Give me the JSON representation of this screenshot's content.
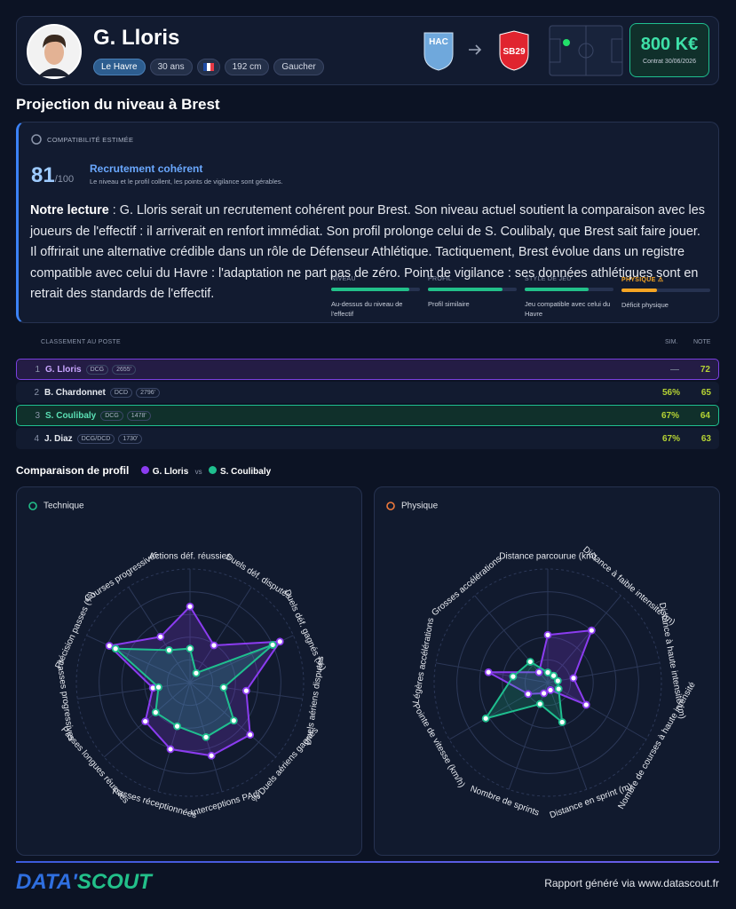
{
  "header": {
    "name": "G. Lloris",
    "tags": [
      "Le Havre",
      "30 ans",
      "192 cm",
      "Gaucher"
    ],
    "from_club": "HAC",
    "to_club": "SB29",
    "value": "800 K€",
    "contract": "Contrat 30/06/2026"
  },
  "projection": {
    "title": "Projection du niveau à Brest",
    "label": "COMPATIBILITÉ ESTIMÉE",
    "score": 81,
    "score_max": "/100",
    "verdict": "Recrutement cohérent",
    "verdict_note": "Le niveau et le profil collent, les points de vigilance sont gérables.",
    "criteria": [
      {
        "label": "NIVEAU",
        "note": "Au-dessus du niveau de l'effectif",
        "value": 88,
        "color": "#22c08a"
      },
      {
        "label": "PROFIL",
        "note": "Profil similaire",
        "value": 84,
        "color": "#22c08a"
      },
      {
        "label": "STYLE DE JEU",
        "note": "Jeu compatible avec celui du Havre",
        "value": 72,
        "color": "#22c08a"
      },
      {
        "label": "PHYSIQUE ⚠",
        "note": "Déficit physique",
        "value": 40,
        "color": "#f5a524"
      }
    ],
    "reading_lead": "Notre lecture",
    "reading": ": G. Lloris serait un recrutement cohérent pour Brest. Son niveau actuel soutient la comparaison avec les joueurs de l'effectif : il arriverait en renfort immédiat. Son profil prolonge celui de S. Coulibaly, que Brest sait faire jouer. Il offrirait une alternative crédible dans un rôle de Défenseur Athlétique. Tactiquement, Brest évolue dans un registre compatible avec celui du Havre : l'adaptation ne part pas de zéro. Point de vigilance : ses données athlétiques sont en retrait des standards de l'effectif."
  },
  "ranking": {
    "title": "CLASSEMENT AU POSTE",
    "sim_label": "SIM.",
    "note_label": "NOTE",
    "rows": [
      {
        "rank": 1,
        "name": "G. Lloris",
        "position": "DCG",
        "elo": "2655'",
        "sim": "—",
        "note": 72
      },
      {
        "rank": 2,
        "name": "B. Chardonnet",
        "position": "DCD",
        "elo": "2796'",
        "sim": "56%",
        "note": 65
      },
      {
        "rank": 3,
        "name": "S. Coulibaly",
        "position": "DCG",
        "elo": "1478'",
        "sim": "67%",
        "note": 64
      },
      {
        "rank": 4,
        "name": "J. Diaz",
        "position": "DCG/DCD",
        "elo": "1730'",
        "sim": "67%",
        "note": 63
      }
    ]
  },
  "comparison": {
    "title": "Comparaison de profil",
    "vs": "vs",
    "charts": [
      {
        "type": "radar",
        "title": "Technique",
        "axes": [
          "Actions déf. réussies",
          "Duels déf. disputés",
          "Duels déf. gagnés (%)",
          "Duels aériens disputés",
          "% Duels aériens gagnés",
          "Interceptions PAdj",
          "Passes réceptionnées",
          "Passes longues réussies",
          "Passes progressives",
          "Précision passes (%)",
          "Courses progressives"
        ],
        "rlim": [
          0,
          100
        ],
        "rticks": [
          20,
          40,
          60,
          80,
          100
        ],
        "series": [
          {
            "name": "G. Lloris",
            "color": "#8b3cf0",
            "values": [
              67,
              39,
              87,
              50,
              70,
              67,
              61,
              52,
              33,
              78,
              48
            ]
          },
          {
            "name": "S. Coulibaly",
            "color": "#1fbf8f",
            "values": [
              30,
              10,
              80,
              30,
              51,
              50,
              40,
              40,
              28,
              72,
              34
            ]
          }
        ]
      },
      {
        "type": "radar",
        "title": "Physique",
        "axes": [
          "Distance parcourue (km)",
          "Distance à faible intensité (m)",
          "Distance à haute intensité (m)",
          "Nombre de courses à haute intensité",
          "Distance en sprint (m)",
          "Nombre de sprints",
          "Pointe de vitesse (km/h)",
          "Légères accélérations",
          "Grosses accélérations"
        ],
        "rlim": [
          0,
          100
        ],
        "rticks": [
          20,
          40,
          60,
          80,
          100
        ],
        "series": [
          {
            "name": "G. Lloris",
            "color": "#8b3cf0",
            "values": [
              42,
              60,
              23,
              39,
              7,
              10,
              20,
              53,
              12
            ]
          },
          {
            "name": "S. Coulibaly",
            "color": "#1fbf8f",
            "values": [
              9,
              8,
              9,
              11,
              37,
              20,
              63,
              31,
              24
            ]
          }
        ]
      }
    ]
  },
  "footer": {
    "logo_data": "DATA'",
    "logo_scout": "SCOUT",
    "credit": "Rapport généré via www.datascout.fr"
  }
}
